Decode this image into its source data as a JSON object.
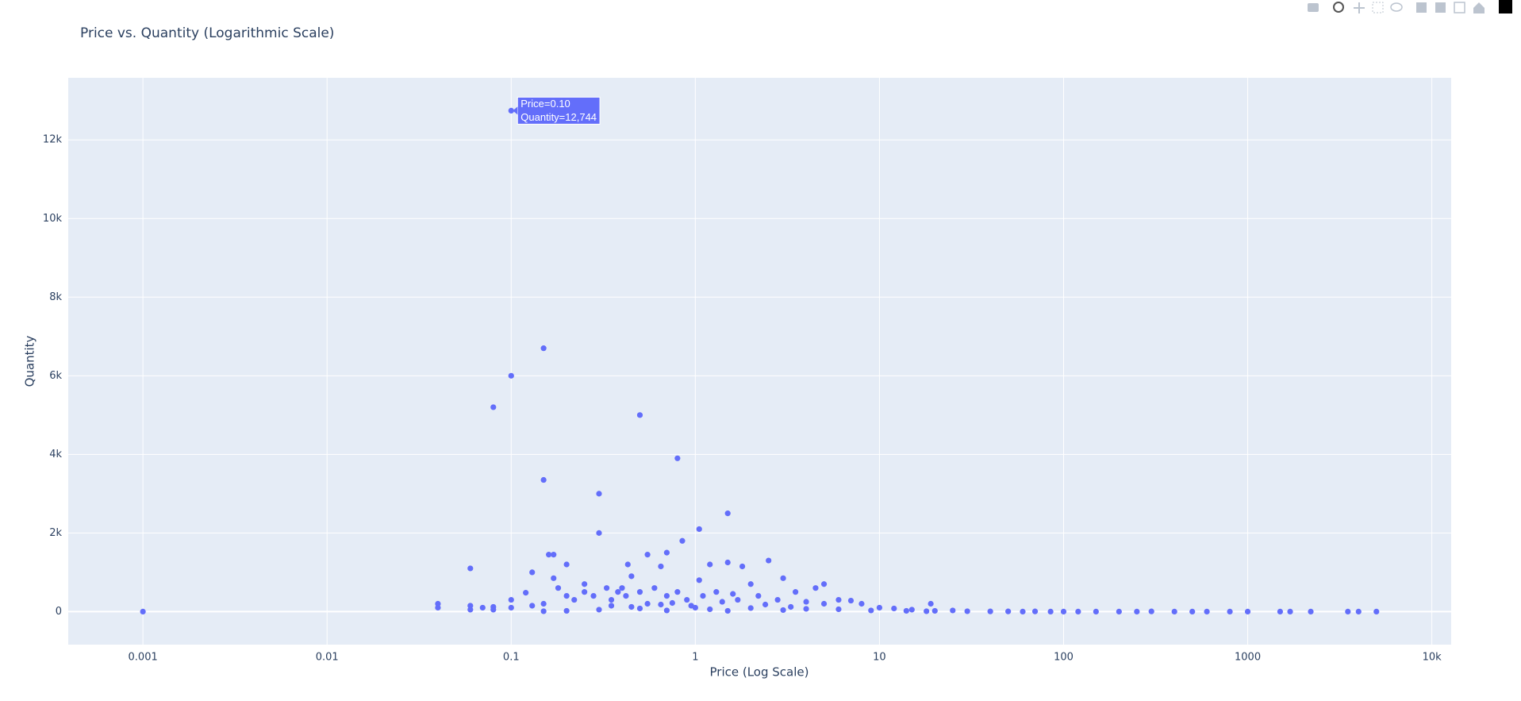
{
  "chart_data": {
    "type": "scatter",
    "title": "Price vs. Quantity (Logarithmic Scale)",
    "x_label": "Price (Log Scale)",
    "y_label": "Quantity",
    "x_log": true,
    "grid": true,
    "color": "#636efa",
    "hover_label": [
      "Price=0.10",
      "Quantity=12,744"
    ],
    "xlim": [
      0.000393,
      12735
    ],
    "ylim": [
      -840,
      13580
    ],
    "xticks": [
      0.001,
      0.01,
      0.1,
      1,
      10,
      100,
      1000,
      {
        "value": 10000,
        "label": "10k"
      }
    ],
    "yticks": [
      0,
      {
        "value": 2000,
        "label": "2k"
      },
      {
        "value": 4000,
        "label": "4k"
      },
      {
        "value": 6000,
        "label": "6k"
      },
      {
        "value": 8000,
        "label": "8k"
      },
      {
        "value": 10000,
        "label": "10k"
      },
      {
        "value": 12000,
        "label": "12k"
      }
    ],
    "x": [
      0.1,
      0.001,
      0.15,
      0.1,
      0.08,
      0.5,
      0.15,
      0.8,
      0.3,
      0.3,
      1.5,
      1.05,
      0.85,
      0.7,
      0.55,
      0.17,
      0.16,
      0.2,
      0.06,
      0.13,
      1.2,
      1.5,
      1.8,
      2.5,
      0.43,
      0.65,
      0.25,
      0.4,
      0.45,
      1.05,
      2,
      3,
      4.5,
      5,
      3.5,
      0.04,
      0.04,
      0.06,
      0.06,
      0.07,
      0.08,
      0.08,
      0.1,
      0.1,
      0.12,
      0.13,
      0.15,
      0.17,
      0.18,
      0.2,
      0.22,
      0.25,
      0.28,
      0.33,
      0.35,
      0.38,
      0.42,
      0.5,
      0.6,
      0.7,
      0.8,
      0.9,
      1.1,
      1.3,
      1.6,
      2.2,
      2.8,
      4,
      5,
      6,
      7,
      8,
      10,
      12,
      15,
      19,
      20,
      25,
      30,
      40,
      50,
      60,
      70,
      85,
      100,
      120,
      150,
      200,
      250,
      300,
      400,
      500,
      600,
      800,
      1000,
      1500,
      1700,
      2200,
      3500,
      4000,
      5000,
      0.3,
      0.5,
      0.7,
      1,
      1.2,
      1.5,
      2,
      3,
      4,
      0.2,
      0.15,
      0.35,
      0.45,
      0.55,
      0.65,
      0.75,
      0.95,
      1.4,
      1.7,
      2.4,
      3.3,
      6,
      9,
      14,
      18
    ],
    "values": [
      12744,
      0,
      6700,
      6000,
      5200,
      5000,
      3350,
      3900,
      3000,
      2000,
      2500,
      2100,
      1800,
      1500,
      1450,
      1450,
      1450,
      1200,
      1100,
      1000,
      1200,
      1250,
      1150,
      1300,
      1200,
      1150,
      700,
      600,
      900,
      800,
      700,
      850,
      600,
      700,
      500,
      200,
      100,
      150,
      50,
      100,
      120,
      50,
      300,
      100,
      480,
      150,
      200,
      850,
      600,
      400,
      300,
      500,
      400,
      600,
      300,
      500,
      400,
      500,
      600,
      400,
      500,
      300,
      400,
      500,
      450,
      400,
      300,
      250,
      200,
      300,
      280,
      200,
      100,
      80,
      50,
      200,
      20,
      30,
      10,
      5,
      5,
      0,
      5,
      0,
      0,
      0,
      0,
      0,
      0,
      5,
      0,
      0,
      0,
      0,
      0,
      0,
      0,
      0,
      0,
      0,
      0,
      50,
      80,
      30,
      100,
      60,
      20,
      90,
      40,
      70,
      20,
      10,
      150,
      120,
      200,
      180,
      220,
      150,
      250,
      300,
      180,
      120,
      60,
      30,
      20,
      10
    ]
  }
}
